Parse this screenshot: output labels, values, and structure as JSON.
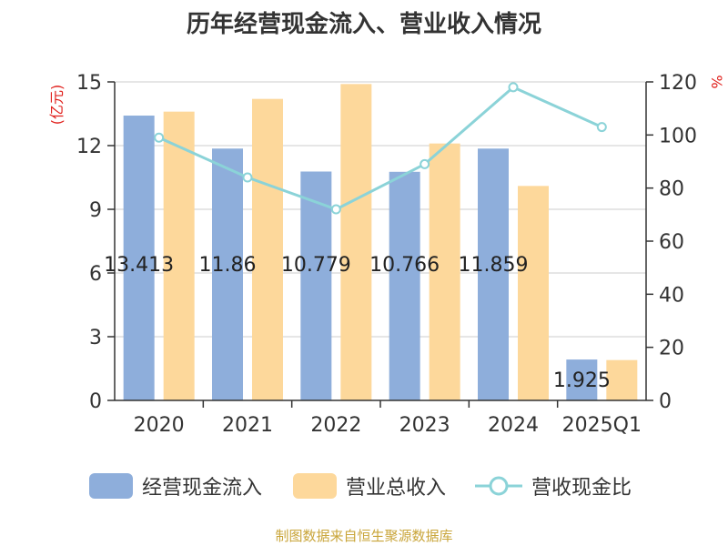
{
  "title": "历年经营现金流入、营业收入情况",
  "source": "制图数据来自恒生聚源数据库",
  "chart_data": {
    "type": "bar",
    "categories": [
      "2020",
      "2021",
      "2022",
      "2023",
      "2024",
      "2025Q1"
    ],
    "left_axis": {
      "label": "(亿元)",
      "ylim": [
        0,
        15
      ],
      "ticks": [
        "0",
        "3",
        "6",
        "9",
        "12",
        "15"
      ]
    },
    "right_axis": {
      "label": "%",
      "ylim": [
        0,
        120
      ],
      "ticks": [
        "0",
        "20",
        "40",
        "60",
        "80",
        "100",
        "120"
      ]
    },
    "grid": true,
    "legend_position": "bottom",
    "series": [
      {
        "name": "经营现金流入",
        "type": "bar",
        "axis": "left",
        "color": "#8eaedb",
        "values": [
          13.413,
          11.86,
          10.779,
          10.766,
          11.859,
          1.925
        ],
        "data_labels": [
          "13.413",
          "11.86",
          "10.779",
          "10.766",
          "11.859",
          "1.925"
        ]
      },
      {
        "name": "营业总收入",
        "type": "bar",
        "axis": "left",
        "color": "#fdd89b",
        "values": [
          13.6,
          14.2,
          14.9,
          12.1,
          10.1,
          1.9
        ]
      },
      {
        "name": "营收现金比",
        "type": "line",
        "axis": "right",
        "color": "#8bd3d8",
        "values": [
          99,
          84,
          72,
          89,
          118,
          103
        ]
      }
    ]
  }
}
